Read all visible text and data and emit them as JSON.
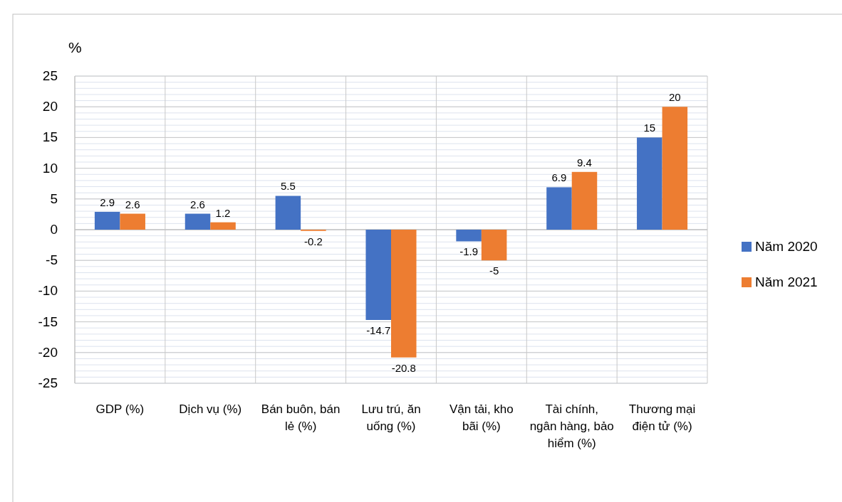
{
  "chart_data": {
    "type": "bar",
    "ylabel": "%",
    "categories": [
      "GDP (%)",
      "Dịch vụ (%)",
      "Bán buôn, bán lẻ (%)",
      "Lưu trú, ăn uống (%)",
      "Vận tải, kho bãi (%)",
      "Tài chính, ngân hàng, bảo hiểm (%)",
      "Thương mại điện tử (%)"
    ],
    "series": [
      {
        "name": "Năm 2020",
        "color": "#4472c4",
        "values": [
          2.9,
          2.6,
          5.5,
          -14.7,
          -1.9,
          6.9,
          15
        ]
      },
      {
        "name": "Năm 2021",
        "color": "#ed7d31",
        "values": [
          2.6,
          1.2,
          -0.2,
          -20.8,
          -5,
          9.4,
          20
        ]
      }
    ],
    "ylim": [
      -25,
      25
    ],
    "yticks": [
      -25,
      -20,
      -15,
      -10,
      -5,
      0,
      5,
      10,
      15,
      20,
      25
    ],
    "grid": true,
    "legend": "right",
    "data_labels": true
  }
}
